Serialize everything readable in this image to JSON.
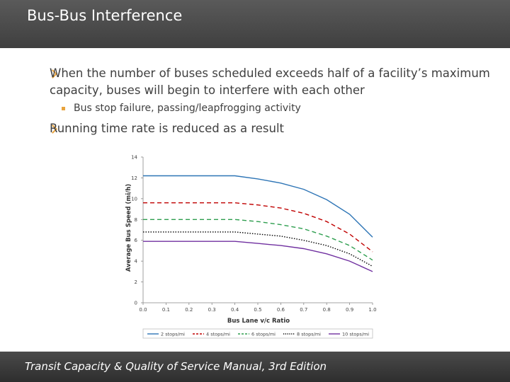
{
  "header": {
    "title": "Bus-Bus Interference"
  },
  "bullets": {
    "b1_line1": "When the number of buses scheduled exceeds half of a facility’s maximum",
    "b1_line2": "capacity, buses will begin to interfere with each other",
    "sub1": "Bus stop failure, passing/leapfrogging activity",
    "b2": "Running time rate is reduced as a result"
  },
  "footer": {
    "text": "Transit Capacity & Quality of Service Manual, 3rd Edition"
  },
  "colors": {
    "accent": "#e8a33d",
    "title_bg": "#4a4a4a"
  },
  "chart_data": {
    "type": "line",
    "xlabel": "Bus Lane v/c Ratio",
    "ylabel": "Average Bus Speed (mi/h)",
    "xlim": [
      0,
      1.0
    ],
    "ylim": [
      0,
      14
    ],
    "x_ticks": [
      "0.0",
      "0.1",
      "0.2",
      "0.3",
      "0.4",
      "0.5",
      "0.6",
      "0.7",
      "0.8",
      "0.9",
      "1.0"
    ],
    "y_ticks": [
      "0",
      "2",
      "4",
      "6",
      "8",
      "10",
      "12",
      "14"
    ],
    "grid": false,
    "legend_position": "bottom",
    "x": [
      0,
      0.1,
      0.2,
      0.3,
      0.4,
      0.5,
      0.6,
      0.7,
      0.8,
      0.9,
      1.0
    ],
    "series": [
      {
        "name": "2 stops/mi",
        "color": "#2e75b6",
        "dash": "solid",
        "values": [
          12.2,
          12.2,
          12.2,
          12.2,
          12.2,
          11.9,
          11.5,
          10.9,
          9.9,
          8.5,
          6.3
        ]
      },
      {
        "name": "4 stops/mi",
        "color": "#c00000",
        "dash": "dashed",
        "values": [
          9.6,
          9.6,
          9.6,
          9.6,
          9.6,
          9.4,
          9.1,
          8.6,
          7.8,
          6.6,
          4.9
        ]
      },
      {
        "name": "6 stops/mi",
        "color": "#2e9e4f",
        "dash": "dashed",
        "values": [
          8.0,
          8.0,
          8.0,
          8.0,
          8.0,
          7.8,
          7.5,
          7.1,
          6.4,
          5.5,
          4.1
        ]
      },
      {
        "name": "8 stops/mi",
        "color": "#000000",
        "dash": "dotted",
        "values": [
          6.8,
          6.8,
          6.8,
          6.8,
          6.8,
          6.6,
          6.4,
          6.0,
          5.5,
          4.7,
          3.5
        ]
      },
      {
        "name": "10 stops/mi",
        "color": "#7030a0",
        "dash": "solid",
        "values": [
          5.9,
          5.9,
          5.9,
          5.9,
          5.9,
          5.7,
          5.5,
          5.2,
          4.7,
          4.0,
          3.0
        ]
      }
    ]
  }
}
